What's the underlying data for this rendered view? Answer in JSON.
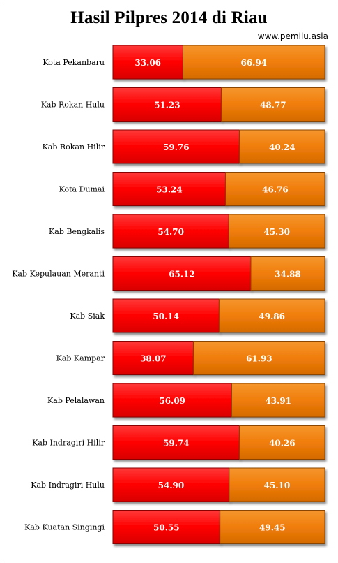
{
  "title": "Hasil Pilpres 2014 di Riau",
  "source": "www.pemilu.asia",
  "colors": {
    "series_a": "#ff0000",
    "series_b": "#f07d0a"
  },
  "chart_data": {
    "type": "bar",
    "orientation": "horizontal",
    "stacked": "100%",
    "title": "Hasil Pilpres 2014 di Riau",
    "categories": [
      "Kota Pekanbaru",
      "Kab Rokan Hulu",
      "Kab Rokan Hilir",
      "Kota Dumai",
      "Kab Bengkalis",
      "Kab Kepulauan  Meranti",
      "Kab Siak",
      "Kab Kampar",
      "Kab Pelalawan",
      "Kab Indragiri  Hilir",
      "Kab Indragiri  Hulu",
      "Kab Kuatan  Singingi"
    ],
    "series": [
      {
        "values": [
          33.06,
          51.23,
          59.76,
          53.24,
          54.7,
          65.12,
          50.14,
          38.07,
          56.09,
          59.74,
          54.9,
          50.55
        ]
      },
      {
        "values": [
          66.94,
          48.77,
          40.24,
          46.76,
          45.3,
          34.88,
          49.86,
          61.93,
          43.91,
          40.26,
          45.1,
          49.45
        ]
      }
    ],
    "value_labels": [
      [
        "33.06",
        "51.23",
        "59.76",
        "53.24",
        "54.70",
        "65.12",
        "50.14",
        "38.07",
        "56.09",
        "59.74",
        "54.90",
        "50.55"
      ],
      [
        "66.94",
        "48.77",
        "40.24",
        "46.76",
        "45.30",
        "34.88",
        "49.86",
        "61.93",
        "43.91",
        "40.26",
        "45.10",
        "49.45"
      ]
    ],
    "xlim": [
      0,
      100
    ],
    "grid": false,
    "legend": "none"
  }
}
